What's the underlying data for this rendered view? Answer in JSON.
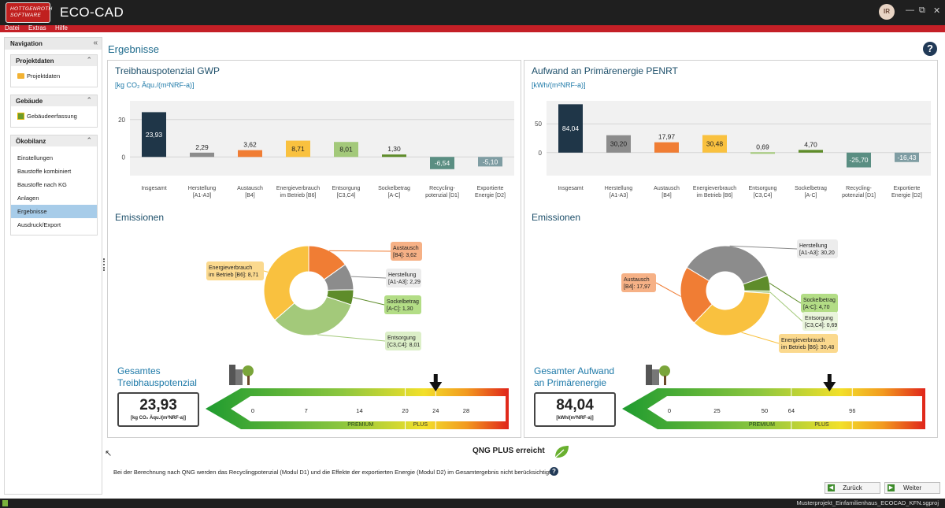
{
  "app": {
    "logo_line1": "HOTTGENROTH",
    "logo_line2": "SOFTWARE",
    "title": "ECO-CAD",
    "user_initials": "IR"
  },
  "menu": [
    "Datei",
    "Extras",
    "Hilfe"
  ],
  "nav": {
    "title": "Navigation",
    "groups": [
      {
        "title": "Projektdaten",
        "items": [
          {
            "label": "Projektdaten"
          }
        ]
      },
      {
        "title": "Gebäude",
        "items": [
          {
            "label": "Gebäudeerfassung"
          }
        ]
      },
      {
        "title": "Ökobilanz",
        "items": [
          {
            "label": "Einstellungen"
          },
          {
            "label": "Baustoffe kombiniert"
          },
          {
            "label": "Baustoffe nach KG"
          },
          {
            "label": "Anlagen"
          },
          {
            "label": "Ergebnisse",
            "selected": true
          },
          {
            "label": "Ausdruck/Export"
          }
        ]
      }
    ]
  },
  "page": {
    "title": "Ergebnisse"
  },
  "gwp": {
    "title": "Treibhauspotenzial GWP",
    "unit": "[kg CO₂ Äqu./(m²NRF-a)]",
    "emissions_title": "Emissionen",
    "total_label_1": "Gesamtes",
    "total_label_2": "Treibhauspotenzial",
    "total_value": "23,93",
    "total_unit": "[kg CO₂ Äqu./(m²NRF-a)]"
  },
  "penrt": {
    "title": "Aufwand an Primärenergie PENRT",
    "unit": "[kWh/(m²NRF-a)]",
    "emissions_title": "Emissionen",
    "total_label_1": "Gesamter Aufwand",
    "total_label_2": "an Primärenergie",
    "total_value": "84,04",
    "total_unit": "[kWh/(m²NRF-a)]"
  },
  "chart_data": [
    {
      "type": "bar",
      "title": "Treibhauspotenzial GWP",
      "ylabel": "[kg CO₂ Äqu./(m²NRF-a)]",
      "ylim": [
        -10,
        30
      ],
      "yticks": [
        0,
        20
      ],
      "categories": [
        [
          "Insgesamt"
        ],
        [
          "Herstellung",
          "[A1-A3]"
        ],
        [
          "Austausch",
          "[B4]"
        ],
        [
          "Energieverbrauch",
          "im Betrieb [B6]"
        ],
        [
          "Entsorgung",
          "[C3,C4]"
        ],
        [
          "Sockelbetrag",
          "[A-C]"
        ],
        [
          "Recycling-",
          "potenzial [D1]"
        ],
        [
          "Exportierte",
          "Energie [D2]"
        ]
      ],
      "values": [
        23.93,
        2.29,
        3.62,
        8.71,
        8.01,
        1.3,
        -6.54,
        -5.1
      ],
      "labels": [
        "23,93",
        "2,29",
        "3,62",
        "8,71",
        "8,01",
        "1,30",
        "-6,54",
        "-5,10"
      ],
      "colors": [
        "#1f3648",
        "#8c8c8c",
        "#f07d34",
        "#f9c13f",
        "#a3c97a",
        "#5e8c2a",
        "#5a8e82",
        "#7f9da3"
      ]
    },
    {
      "type": "bar",
      "title": "Aufwand an Primärenergie PENRT",
      "ylabel": "[kWh/(m²NRF-a)]",
      "ylim": [
        -40,
        90
      ],
      "yticks": [
        0,
        50
      ],
      "categories": [
        [
          "Insgesamt"
        ],
        [
          "Herstellung",
          "[A1-A3]"
        ],
        [
          "Austausch",
          "[B4]"
        ],
        [
          "Energieverbrauch",
          "im Betrieb [B6]"
        ],
        [
          "Entsorgung",
          "[C3,C4]"
        ],
        [
          "Sockelbetrag",
          "[A-C]"
        ],
        [
          "Recycling-",
          "potenzial [D1]"
        ],
        [
          "Exportierte",
          "Energie [D2]"
        ]
      ],
      "values": [
        84.04,
        30.2,
        17.97,
        30.48,
        0.69,
        4.7,
        -25.7,
        -16.43
      ],
      "labels": [
        "84,04",
        "30,20",
        "17,97",
        "30,48",
        "0,69",
        "4,70",
        "-25,70",
        "-16,43"
      ],
      "colors": [
        "#1f3648",
        "#8c8c8c",
        "#f07d34",
        "#f9c13f",
        "#a3c97a",
        "#5e8c2a",
        "#5a8e82",
        "#7f9da3"
      ]
    },
    {
      "type": "pie",
      "title": "Emissionen",
      "slices": [
        {
          "label": [
            "Austausch",
            "[B4]: 3,62"
          ],
          "value": 3.62,
          "color": "#f07d34",
          "bg": "#f6b186"
        },
        {
          "label": [
            "Herstellung",
            "[A1-A3]: 2,29"
          ],
          "value": 2.29,
          "color": "#8c8c8c",
          "bg": "#ececec"
        },
        {
          "label": [
            "Sockelbetrag",
            "[A-C]: 1,30"
          ],
          "value": 1.3,
          "color": "#5e8c2a",
          "bg": "#b3dd86"
        },
        {
          "label": [
            "Entsorgung",
            "[C3,C4]: 8,01"
          ],
          "value": 8.01,
          "color": "#a3c97a",
          "bg": "#dcefc8"
        },
        {
          "label": [
            "Energieverbrauch",
            "im Betrieb [B6]: 8,71"
          ],
          "value": 8.71,
          "color": "#f9c13f",
          "bg": "#fbd98e"
        }
      ]
    },
    {
      "type": "pie",
      "title": "Emissionen",
      "slices": [
        {
          "label": [
            "Herstellung",
            "[A1-A3]: 30,20"
          ],
          "value": 30.2,
          "color": "#8c8c8c",
          "bg": "#ececec"
        },
        {
          "label": [
            "Sockelbetrag",
            "[A-C]: 4,70"
          ],
          "value": 4.7,
          "color": "#5e8c2a",
          "bg": "#b3dd86"
        },
        {
          "label": [
            "Entsorgung",
            "[C3,C4]: 0,69"
          ],
          "value": 0.69,
          "color": "#a3c97a",
          "bg": "#eaf5dc"
        },
        {
          "label": [
            "Energieverbrauch",
            "im Betrieb [B6]: 30,48"
          ],
          "value": 30.48,
          "color": "#f9c13f",
          "bg": "#fbd98e"
        },
        {
          "label": [
            "Austausch",
            "[B4]: 17,97"
          ],
          "value": 17.97,
          "color": "#f07d34",
          "bg": "#f6b186"
        }
      ]
    }
  ],
  "scales": [
    {
      "ticks": [
        "0",
        "7",
        "14",
        "20",
        "24",
        "28"
      ],
      "tick_values": [
        0,
        7,
        14,
        20,
        24,
        28
      ],
      "xmax": 31,
      "bands": [
        "PREMIUM",
        "PLUS"
      ],
      "band_bounds": [
        20,
        24
      ],
      "marker": 24
    },
    {
      "ticks": [
        "0",
        "25",
        "50",
        "64",
        "96"
      ],
      "tick_values": [
        0,
        25,
        50,
        64,
        96
      ],
      "xmax": 124,
      "bands": [
        "PREMIUM",
        "PLUS"
      ],
      "band_bounds": [
        64,
        96
      ],
      "marker": 84.04
    }
  ],
  "qng": {
    "result": "QNG PLUS erreicht",
    "note": "Bei der Berechnung nach QNG werden das Recyclingpotenzial (Modul D1) und die Effekte der exportierten Energie (Modul D2) im Gesamtergebnis nicht berücksichtigt."
  },
  "buttons": {
    "back": "Zurück",
    "next": "Weiter"
  },
  "status": {
    "file": "Musterprojekt_Einfamilienhaus_ECOCAD_KFN.sgproj"
  }
}
